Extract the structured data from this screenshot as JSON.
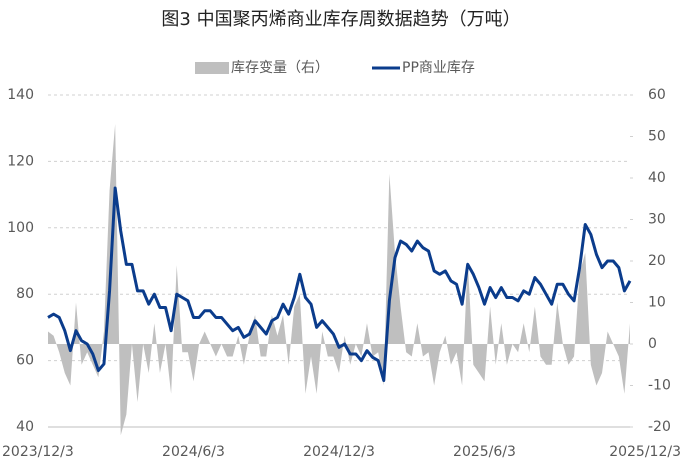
{
  "chart_data": {
    "type": "line",
    "title": "图3  中国聚丙烯商业库存周数据趋势（万吨）",
    "categories": [
      "2023/12/3",
      null,
      null,
      null,
      null,
      null,
      null,
      null,
      null,
      null,
      null,
      null,
      null,
      null,
      null,
      null,
      null,
      null,
      null,
      null,
      null,
      null,
      null,
      null,
      null,
      null,
      "2024/6/3",
      null,
      null,
      null,
      null,
      null,
      null,
      null,
      null,
      null,
      null,
      null,
      null,
      null,
      null,
      null,
      null,
      null,
      null,
      null,
      null,
      null,
      null,
      null,
      null,
      null,
      "2024/12/3",
      null,
      null,
      null,
      null,
      null,
      null,
      null,
      null,
      null,
      null,
      null,
      null,
      null,
      null,
      null,
      null,
      null,
      null,
      null,
      null,
      null,
      null,
      null,
      null,
      null,
      "2025/6/3",
      null,
      null,
      null,
      null,
      null,
      null,
      null,
      null,
      null,
      null,
      null,
      null,
      null,
      null,
      null,
      null,
      null,
      null,
      null,
      null,
      null,
      null,
      null,
      null,
      null,
      "2025/12/3"
    ],
    "series": [
      {
        "name": "库存变量（右）",
        "type": "area",
        "axis": "y2",
        "color": "#bfbfbf",
        "values": [
          3,
          2,
          -2,
          -7,
          -10,
          10,
          -5,
          -2,
          -5,
          -8,
          3,
          37,
          53,
          -22,
          -17,
          0,
          -14,
          0,
          -7,
          5,
          -7,
          0,
          -12,
          19,
          -2,
          -2,
          -9,
          0,
          3,
          0,
          -3,
          0,
          -3,
          -3,
          2,
          -5,
          2,
          7,
          -3,
          -3,
          7,
          2,
          7,
          -5,
          9,
          12,
          -12,
          -3,
          -12,
          3,
          -3,
          -3,
          -7,
          2,
          -5,
          0,
          -3,
          5,
          -3,
          -2,
          -10,
          41,
          22,
          9,
          -2,
          -3,
          5,
          -3,
          -2,
          -10,
          -2,
          2,
          -5,
          -2,
          -10,
          20,
          -5,
          -7,
          -9,
          9,
          -5,
          5,
          -5,
          0,
          -2,
          5,
          -2,
          9,
          -3,
          -5,
          -5,
          10,
          0,
          -5,
          -3,
          17,
          22,
          -5,
          -10,
          -7,
          3,
          0,
          -3,
          -12,
          5
        ]
      },
      {
        "name": "PP商业库存",
        "type": "line",
        "color": "#0b3c8c",
        "values": [
          73,
          74,
          73,
          69,
          63,
          69,
          66,
          65,
          62,
          57,
          59,
          81,
          112,
          99,
          89,
          89,
          81,
          81,
          77,
          80,
          76,
          76,
          69,
          80,
          79,
          78,
          73,
          73,
          75,
          75,
          73,
          73,
          71,
          69,
          70,
          67,
          68,
          72,
          70,
          68,
          72,
          73,
          77,
          74,
          79,
          86,
          79,
          77,
          70,
          72,
          70,
          68,
          64,
          65,
          62,
          62,
          60,
          63,
          61,
          60,
          54,
          78,
          91,
          96,
          95,
          93,
          96,
          94,
          93,
          87,
          86,
          87,
          84,
          83,
          77,
          89,
          86,
          82,
          77,
          82,
          79,
          82,
          79,
          79,
          78,
          81,
          80,
          85,
          83,
          80,
          77,
          83,
          83,
          80,
          78,
          88,
          101,
          98,
          92,
          88,
          90,
          90,
          88,
          81,
          84
        ]
      }
    ],
    "ylim": [
      40,
      140
    ],
    "yticks": [
      40,
      60,
      80,
      100,
      120,
      140
    ],
    "y2lim": [
      -20,
      60
    ],
    "y2ticks": [
      -20,
      -10,
      0,
      10,
      20,
      30,
      40,
      50,
      60
    ],
    "grid": true,
    "legend": "top"
  }
}
